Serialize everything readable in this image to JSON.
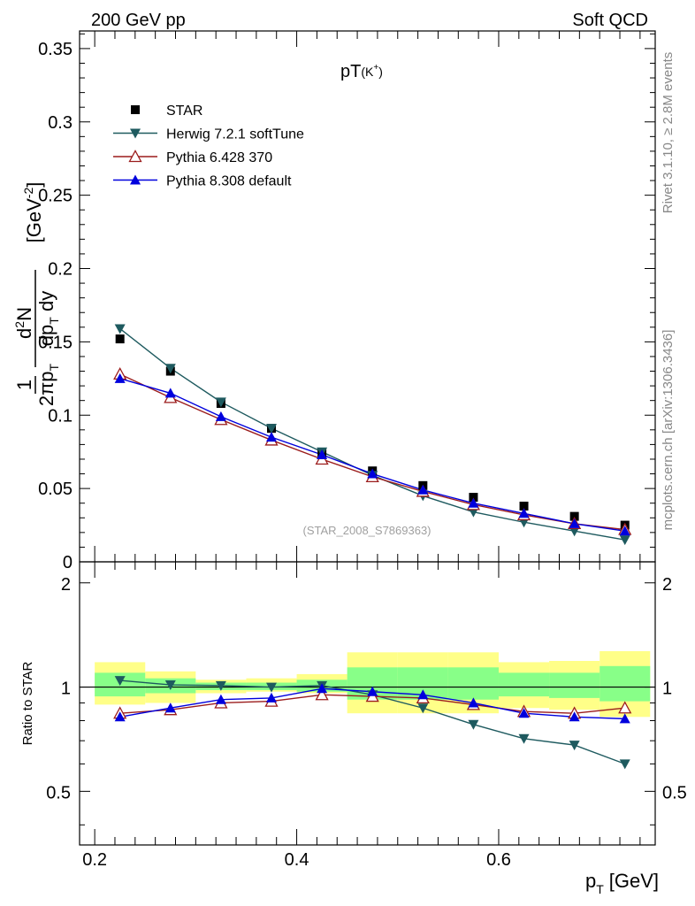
{
  "header": {
    "left": "200 GeV pp",
    "right": "Soft QCD"
  },
  "side": {
    "rivet": "Rivet 3.1.10, ≥ 2.8M events",
    "mcplots": "mcplots.cern.ch [arXiv:1306.3436]"
  },
  "chart_data": [
    {
      "type": "scatter",
      "title": "pT(K⁺)",
      "title_main": "pT",
      "title_sub": "(K",
      "title_sup": "+",
      "title_close": ")",
      "watermark": "(STAR_2008_S7869363)",
      "ylabel": "1/(2π p_T) d²N/(dp_T dy) [GeV⁻²]",
      "ylim": [
        0,
        0.362
      ],
      "yticks": [
        0,
        0.05,
        0.1,
        0.15,
        0.2,
        0.25,
        0.3,
        0.35
      ],
      "ytick_labels": [
        "0",
        "0.05",
        "0.1",
        "0.15",
        "0.2",
        "0.25",
        "0.3",
        "0.35"
      ],
      "xlim": [
        0.185,
        0.755
      ],
      "legend": "top-left",
      "x": [
        0.225,
        0.275,
        0.325,
        0.375,
        0.425,
        0.475,
        0.525,
        0.575,
        0.625,
        0.675,
        0.725
      ],
      "series": [
        {
          "name": "STAR",
          "marker": "square",
          "color": "#000000",
          "values": [
            0.152,
            0.13,
            0.108,
            0.091,
            0.074,
            0.062,
            0.052,
            0.044,
            0.038,
            0.031,
            0.025
          ]
        },
        {
          "name": "Herwig 7.2.1 softTune",
          "marker": "triangle-down",
          "color": "#1e5a5f",
          "values": [
            0.159,
            0.132,
            0.109,
            0.091,
            0.075,
            0.059,
            0.045,
            0.034,
            0.027,
            0.021,
            0.015
          ]
        },
        {
          "name": "Pythia 6.428 370",
          "marker": "triangle-up-open",
          "color": "#9b1c1c",
          "values": [
            0.128,
            0.112,
            0.097,
            0.083,
            0.07,
            0.058,
            0.048,
            0.039,
            0.032,
            0.026,
            0.022
          ]
        },
        {
          "name": "Pythia 8.308 default",
          "marker": "triangle-up",
          "color": "#0000dd",
          "values": [
            0.125,
            0.115,
            0.099,
            0.085,
            0.073,
            0.06,
            0.049,
            0.04,
            0.033,
            0.026,
            0.021
          ]
        }
      ]
    },
    {
      "type": "scatter",
      "ylabel": "Ratio to STAR",
      "xlabel_main": "p",
      "xlabel_sub": "T",
      "xlabel_unit": "[GeV]",
      "xlim": [
        0.185,
        0.755
      ],
      "xticks": [
        0.2,
        0.4,
        0.6
      ],
      "xtick_labels": [
        "0.2",
        "0.4",
        "0.6"
      ],
      "ylim": [
        0.35,
        2.3
      ],
      "yscale": "log",
      "yticks": [
        0.5,
        1,
        2
      ],
      "ytick_labels": [
        "0.5",
        "1",
        "2"
      ],
      "band_edges": [
        0.2,
        0.25,
        0.3,
        0.35,
        0.4,
        0.45,
        0.5,
        0.55,
        0.6,
        0.65,
        0.7,
        0.75
      ],
      "band_outer": [
        [
          0.89,
          1.18
        ],
        [
          0.9,
          1.11
        ],
        [
          0.96,
          1.05
        ],
        [
          0.97,
          1.06
        ],
        [
          0.96,
          1.09
        ],
        [
          0.84,
          1.26
        ],
        [
          0.84,
          1.26
        ],
        [
          0.84,
          1.26
        ],
        [
          0.87,
          1.18
        ],
        [
          0.86,
          1.19
        ],
        [
          0.82,
          1.27
        ]
      ],
      "band_inner": [
        [
          0.94,
          1.1
        ],
        [
          0.96,
          1.06
        ],
        [
          0.98,
          1.03
        ],
        [
          0.98,
          1.03
        ],
        [
          0.97,
          1.05
        ],
        [
          0.92,
          1.14
        ],
        [
          0.92,
          1.14
        ],
        [
          0.92,
          1.14
        ],
        [
          0.94,
          1.1
        ],
        [
          0.93,
          1.1
        ],
        [
          0.91,
          1.15
        ]
      ],
      "series": [
        {
          "name": "Herwig 7.2.1 softTune",
          "marker": "triangle-down",
          "color": "#1e5a5f",
          "values": [
            1.045,
            1.015,
            1.01,
            1.0,
            1.01,
            0.95,
            0.87,
            0.78,
            0.71,
            0.68,
            0.6
          ]
        },
        {
          "name": "Pythia 6.428 370",
          "marker": "triangle-up-open",
          "color": "#9b1c1c",
          "values": [
            0.84,
            0.86,
            0.9,
            0.91,
            0.95,
            0.94,
            0.93,
            0.89,
            0.85,
            0.84,
            0.87
          ]
        },
        {
          "name": "Pythia 8.308 default",
          "marker": "triangle-up",
          "color": "#0000dd",
          "values": [
            0.82,
            0.87,
            0.92,
            0.93,
            0.99,
            0.97,
            0.95,
            0.9,
            0.84,
            0.82,
            0.81
          ]
        }
      ],
      "band_colors": {
        "outer": "#ffff88",
        "inner": "#88ff88"
      }
    }
  ]
}
